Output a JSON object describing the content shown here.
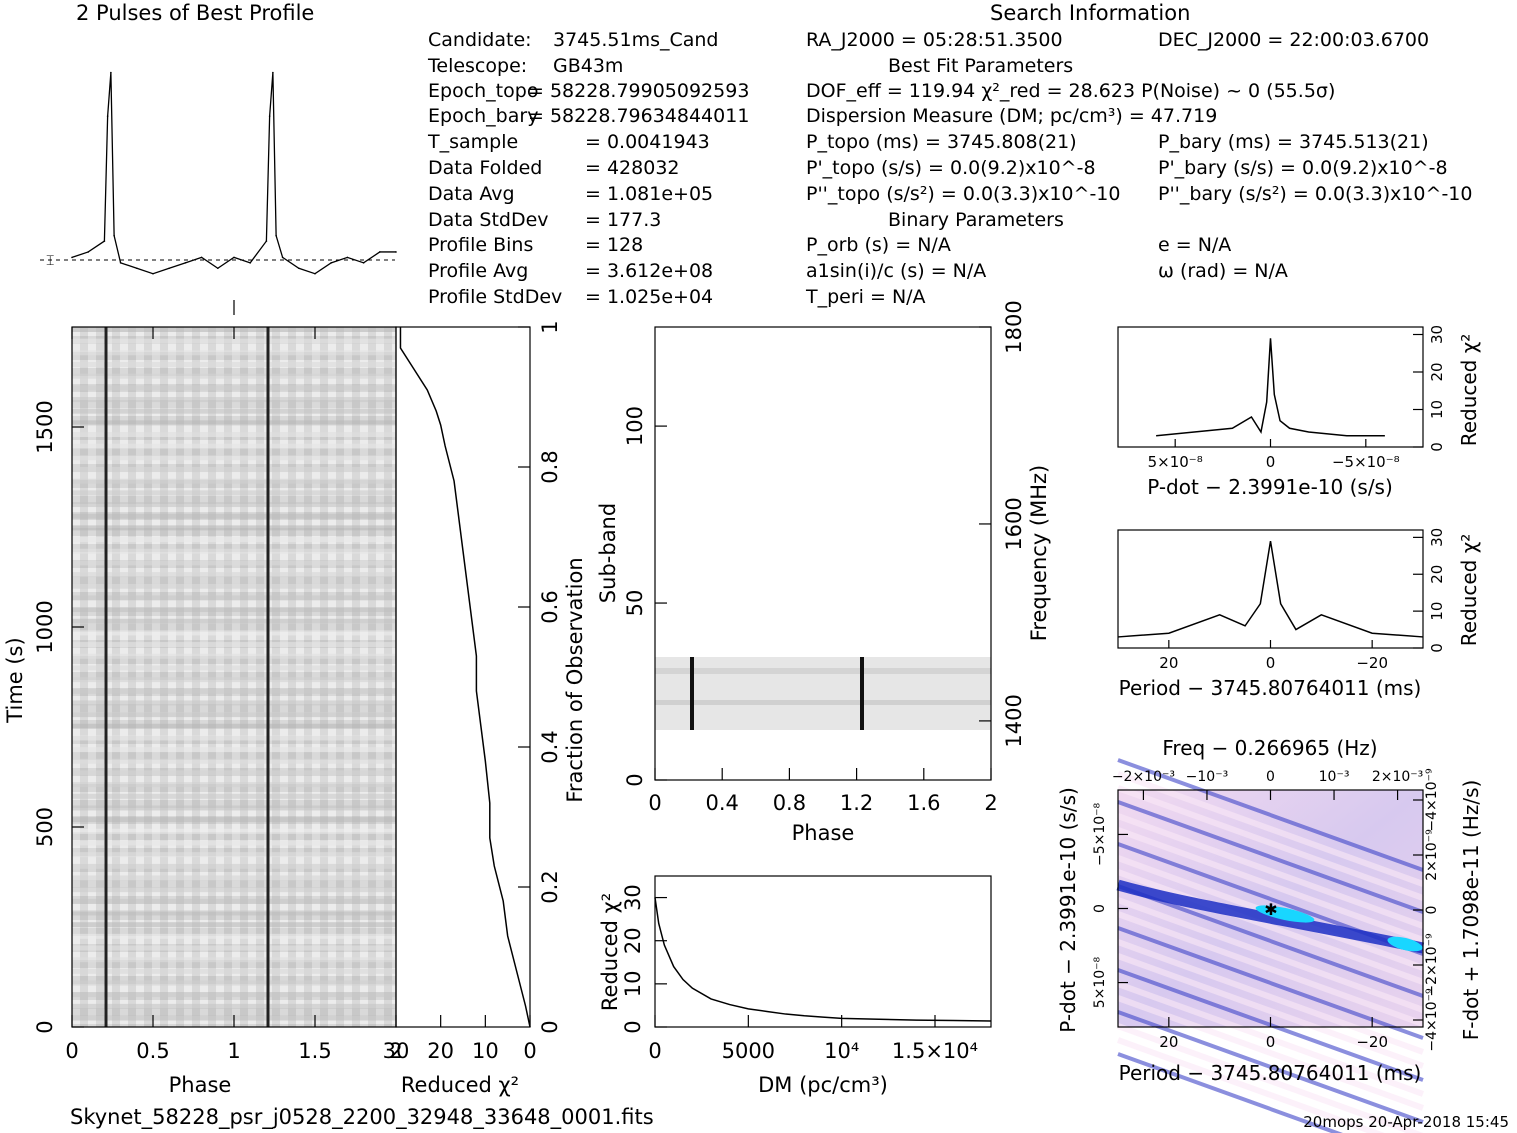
{
  "profile_title": "2 Pulses of Best Profile",
  "search_title": "Search Information",
  "info_left": [
    {
      "label": "Candidate:",
      "value": "3745.51ms_Cand"
    },
    {
      "label": "Telescope:",
      "value": "GB43m"
    },
    {
      "label": "Epoch_topo",
      "value": "= 58228.79905092593"
    },
    {
      "label": "Epoch_bary",
      "value": "= 58228.79634844011"
    },
    {
      "label": "T_sample",
      "value": "= 0.0041943"
    },
    {
      "label": "Data Folded",
      "value": "= 428032"
    },
    {
      "label": "Data Avg",
      "value": "= 1.081e+05"
    },
    {
      "label": "Data StdDev",
      "value": "= 177.3"
    },
    {
      "label": "Profile Bins",
      "value": "= 128"
    },
    {
      "label": "Profile Avg",
      "value": "= 3.612e+08"
    },
    {
      "label": "Profile StdDev",
      "value": "= 1.025e+04"
    }
  ],
  "info_mid": [
    "RA_J2000 = 05:28:51.3500",
    "Best Fit Parameters",
    "DOF_eff = 119.94  χ²_red = 28.623  P(Noise) ~ 0  (55.5σ)",
    "Dispersion Measure (DM; pc/cm³) = 47.719",
    "P_topo (ms) = 3745.808(21)",
    "P'_topo (s/s) = 0.0(9.2)x10^-8",
    "P''_topo (s/s²) = 0.0(3.3)x10^-10",
    "Binary Parameters",
    "P_orb (s) = N/A",
    "a1sin(i)/c (s) = N/A",
    "T_peri = N/A"
  ],
  "info_right": [
    "DEC_J2000 = 22:00:03.6700",
    "P_bary (ms) = 3745.513(21)",
    "P'_bary (s/s) = 0.0(9.2)x10^-8",
    "P''_bary (s/s²) = 0.0(3.3)x10^-10",
    "e = N/A",
    "ω (rad) = N/A"
  ],
  "footer": {
    "filename": "Skynet_58228_psr_j0528_2200_32948_33648_0001.fits",
    "stamp": "20mops 20-Apr-2018 15:45"
  },
  "colors": {
    "gray_dark": "#222222",
    "ppdot_blue": "#2b3ccf",
    "ppdot_cyan": "#19d6ff",
    "ppdot_pink": "#f4d8f2"
  },
  "chart_data": [
    {
      "id": "pulse_profile",
      "type": "line",
      "title": "2 Pulses of Best Profile",
      "x": [
        0.0,
        0.1,
        0.2,
        0.22,
        0.24,
        0.26,
        0.3,
        0.4,
        0.5,
        0.6,
        0.7,
        0.8,
        0.9,
        1.0,
        1.1,
        1.2,
        1.22,
        1.24,
        1.26,
        1.3,
        1.4,
        1.5,
        1.6,
        1.7,
        1.8,
        1.9,
        2.0
      ],
      "values": [
        0.0,
        0.1,
        0.3,
        2.6,
        3.4,
        0.4,
        -0.1,
        -0.2,
        -0.3,
        -0.2,
        -0.1,
        0.0,
        -0.2,
        0.0,
        -0.1,
        0.3,
        2.6,
        3.4,
        0.4,
        0.0,
        -0.2,
        -0.3,
        -0.1,
        0.0,
        -0.1,
        0.1,
        0.1
      ]
    },
    {
      "id": "time_phase",
      "type": "heatmap",
      "xlabel": "Phase",
      "ylabel": "Time (s)",
      "xlim": [
        0,
        2
      ],
      "ylim": [
        0,
        1750
      ],
      "x_ticks": [
        "0",
        "0.5",
        "1",
        "1.5"
      ],
      "y_ticks": [
        "0",
        "500",
        "1000",
        "1500"
      ],
      "pulse_phases": [
        0.22,
        1.22
      ]
    },
    {
      "id": "chi2_vs_time",
      "type": "line",
      "xlabel": "Reduced χ²",
      "ylabel": "Fraction of Observation",
      "xlim": [
        30,
        0
      ],
      "ylim": [
        0,
        1
      ],
      "x_ticks": [
        "30",
        "20",
        "10",
        "0"
      ],
      "y_ticks": [
        "0.2",
        "0.4",
        "0.6",
        "0.8",
        "1"
      ],
      "x": [
        0,
        1,
        3,
        5,
        6,
        8,
        9,
        9,
        10,
        11,
        12,
        12,
        13,
        14,
        15,
        16,
        17,
        19,
        20,
        21,
        23,
        26,
        29,
        29
      ],
      "y": [
        0.0,
        0.03,
        0.08,
        0.13,
        0.18,
        0.23,
        0.27,
        0.32,
        0.38,
        0.43,
        0.48,
        0.53,
        0.58,
        0.63,
        0.68,
        0.73,
        0.78,
        0.83,
        0.86,
        0.88,
        0.91,
        0.94,
        0.97,
        1.0
      ]
    },
    {
      "id": "subband_phase",
      "type": "heatmap",
      "xlabel": "Phase",
      "ylabel": "Sub-band",
      "y2label": "Frequency (MHz)",
      "xlim": [
        0,
        2
      ],
      "ylim": [
        0,
        128
      ],
      "x_ticks": [
        "0",
        "0.4",
        "0.8",
        "1.2",
        "1.6",
        "2"
      ],
      "y_ticks": [
        "0",
        "50",
        "100"
      ],
      "y2_ticks": [
        "1400",
        "1600",
        "1800"
      ],
      "band_rows": [
        14,
        35
      ],
      "pulse_phases": [
        0.22,
        1.22
      ]
    },
    {
      "id": "dm_curve",
      "type": "line",
      "xlabel": "DM (pc/cm³)",
      "ylabel": "Reduced χ²",
      "xlim": [
        0,
        18000
      ],
      "ylim": [
        0,
        35
      ],
      "x_ticks": [
        "0",
        "5000",
        "10⁴",
        "1.5×10⁴"
      ],
      "y_ticks": [
        "0",
        "10",
        "20",
        "30"
      ],
      "x": [
        0,
        200,
        500,
        1000,
        1500,
        2000,
        3000,
        4000,
        5000,
        6000,
        7000,
        8000,
        9000,
        10000,
        12000,
        14000,
        16000,
        18000
      ],
      "values": [
        30,
        24,
        19,
        14,
        11,
        9,
        6.5,
        5.2,
        4.2,
        3.6,
        3.0,
        2.6,
        2.3,
        2.0,
        1.8,
        1.6,
        1.5,
        1.4
      ]
    },
    {
      "id": "pdot_curve",
      "type": "line",
      "xlabel": "P-dot − 2.3991e-10 (s/s)",
      "ylabel": "Reduced χ²",
      "x_ticks": [
        "5×10⁻⁸",
        "0",
        "−5×10⁻⁸"
      ],
      "y_ticks": [
        "0",
        "10",
        "20",
        "30"
      ],
      "x": [
        6,
        4,
        2,
        1,
        0.5,
        0.2,
        0,
        -0.2,
        -0.5,
        -1,
        -2,
        -4,
        -6
      ],
      "values": [
        3,
        4,
        5,
        8,
        4,
        12,
        29,
        14,
        7,
        5,
        4,
        3,
        3
      ]
    },
    {
      "id": "period_curve",
      "type": "line",
      "xlabel": "Period − 3745.80764011 (ms)",
      "ylabel": "Reduced χ²",
      "x_ticks": [
        "20",
        "0",
        "−20"
      ],
      "y_ticks": [
        "0",
        "10",
        "20",
        "30"
      ],
      "x": [
        30,
        20,
        10,
        5,
        2,
        0,
        -2,
        -5,
        -10,
        -20,
        -30
      ],
      "values": [
        3,
        4,
        9,
        6,
        12,
        29,
        12,
        5,
        9,
        4,
        3
      ]
    },
    {
      "id": "p_pdot_plane",
      "type": "heatmap",
      "title": "Freq − 0.266965 (Hz)",
      "xlabel": "Period − 3745.80764011 (ms)",
      "ylabel": "P-dot − 2.3991e-10 (s/s)",
      "y2label": "F-dot + 1.7098e-11 (Hz/s)",
      "x_ticks": [
        "20",
        "0",
        "−20"
      ],
      "x2_ticks": [
        "−2×10⁻³",
        "−10⁻³",
        "0",
        "10⁻³",
        "2×10⁻³"
      ],
      "y_ticks": [
        "−5×10⁻⁸",
        "0",
        "5×10⁻⁸"
      ],
      "y2_ticks": [
        "−4×10⁻⁹",
        "2×10⁻⁹",
        "0",
        "−2×10⁻⁹",
        "−4×10⁻⁹"
      ]
    }
  ]
}
